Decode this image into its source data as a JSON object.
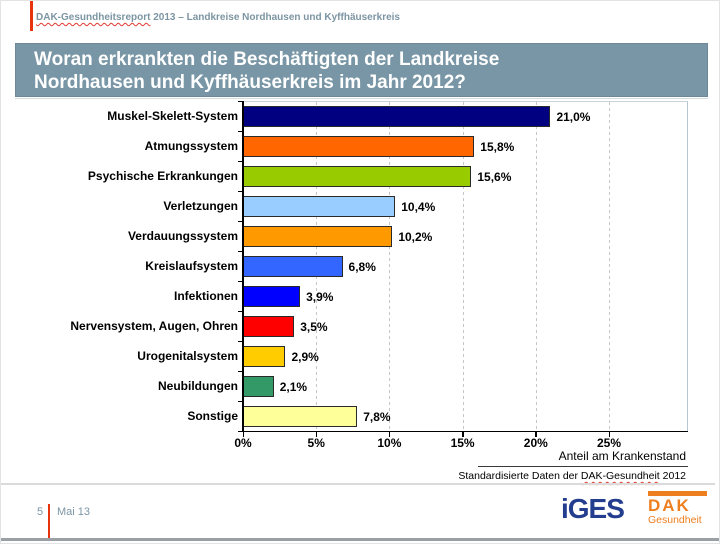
{
  "header": {
    "report_name": "DAK-Gesundheitsreport",
    "report_rest": " 2013 – Landkreise Nordhausen und Kyffhäuserkreis"
  },
  "title": {
    "line1": "Woran erkrankten die Beschäftigten der Landkreise",
    "line2": "Nordhausen und Kyffhäuserkreis im Jahr 2012?",
    "bg_color": "#7896A6"
  },
  "chart_data": {
    "type": "bar",
    "orientation": "horizontal",
    "title": "Woran erkrankten die Beschäftigten der Landkreise Nordhausen und Kyffhäuserkreis im Jahr 2012?",
    "categories": [
      "Muskel-Skelett-System",
      "Atmungssystem",
      "Psychische Erkrankungen",
      "Verletzungen",
      "Verdauungssystem",
      "Kreislaufsystem",
      "Infektionen",
      "Nervensystem, Augen, Ohren",
      "Urogenitalsystem",
      "Neubildungen",
      "Sonstige"
    ],
    "values": [
      21.0,
      15.8,
      15.6,
      10.4,
      10.2,
      6.8,
      3.9,
      3.5,
      2.9,
      2.1,
      7.8
    ],
    "value_labels": [
      "21,0%",
      "15,8%",
      "15,6%",
      "10,4%",
      "10,2%",
      "6,8%",
      "3,9%",
      "3,5%",
      "2,9%",
      "2,1%",
      "7,8%"
    ],
    "bar_colors": [
      "#000080",
      "#FF6600",
      "#99CC00",
      "#99CCFF",
      "#FF9900",
      "#3366FF",
      "#0000FF",
      "#FF0000",
      "#FFCC00",
      "#339966",
      "#FFFF99"
    ],
    "xlabel": "Anteil am Krankenstand",
    "x_ticks": [
      "0%",
      "5%",
      "10%",
      "15%",
      "20%",
      "25%"
    ],
    "xlim": [
      0,
      25
    ],
    "grid": "vertical-dashed",
    "unit": "%"
  },
  "source": {
    "prefix": "Standardisierte Daten der ",
    "link": "DAK-Gesundheit",
    "suffix": " 2012"
  },
  "footer": {
    "page": "5",
    "date": "Mai 13",
    "iges_logo": "iGES",
    "dak_logo": "DAK",
    "dak_sub": "Gesundheit"
  },
  "colors": {
    "title_bar": "#7896A6",
    "header_text": "#7C95A3",
    "accent_red": "#E8340C",
    "iges_navy": "#233E8F",
    "dak_orange": "#EE7F1F"
  }
}
